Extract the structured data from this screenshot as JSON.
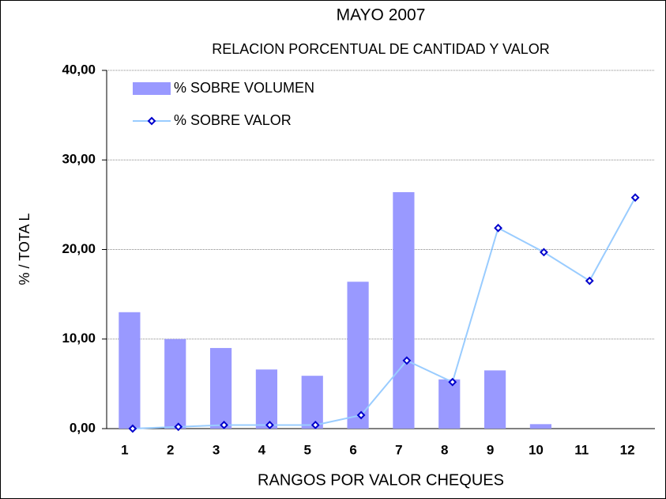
{
  "chart_data": {
    "type": "combo",
    "title": "MAYO  2007",
    "subtitle": "RELACION PORCENTUAL DE CANTIDAD Y VALOR",
    "x_label": "RANGOS POR VALOR CHEQUES",
    "y_label": "%  /    TOTA L",
    "categories": [
      "1",
      "2",
      "3",
      "4",
      "5",
      "6",
      "7",
      "8",
      "9",
      "10",
      "11",
      "12"
    ],
    "series": [
      {
        "name": "% SOBRE VOLUMEN",
        "type": "bar",
        "color": "#9999ff",
        "values": [
          13.0,
          10.0,
          9.0,
          6.6,
          5.9,
          16.4,
          26.4,
          5.5,
          6.5,
          0.5,
          0,
          0
        ]
      },
      {
        "name": "% SOBRE VALOR",
        "type": "line",
        "color": "#99ccff",
        "marker_color": "#0000cc",
        "values": [
          0,
          0.2,
          0.4,
          0.4,
          0.4,
          1.5,
          7.6,
          5.2,
          22.4,
          19.7,
          16.5,
          25.8
        ]
      }
    ],
    "ylim": [
      0,
      40
    ],
    "yticks": [
      {
        "value": 0,
        "label": "0,00"
      },
      {
        "value": 10,
        "label": "10,00"
      },
      {
        "value": 20,
        "label": "20,00"
      },
      {
        "value": 30,
        "label": "30,00"
      },
      {
        "value": 40,
        "label": "40,00"
      }
    ],
    "grid": true,
    "legend": "top-left"
  }
}
